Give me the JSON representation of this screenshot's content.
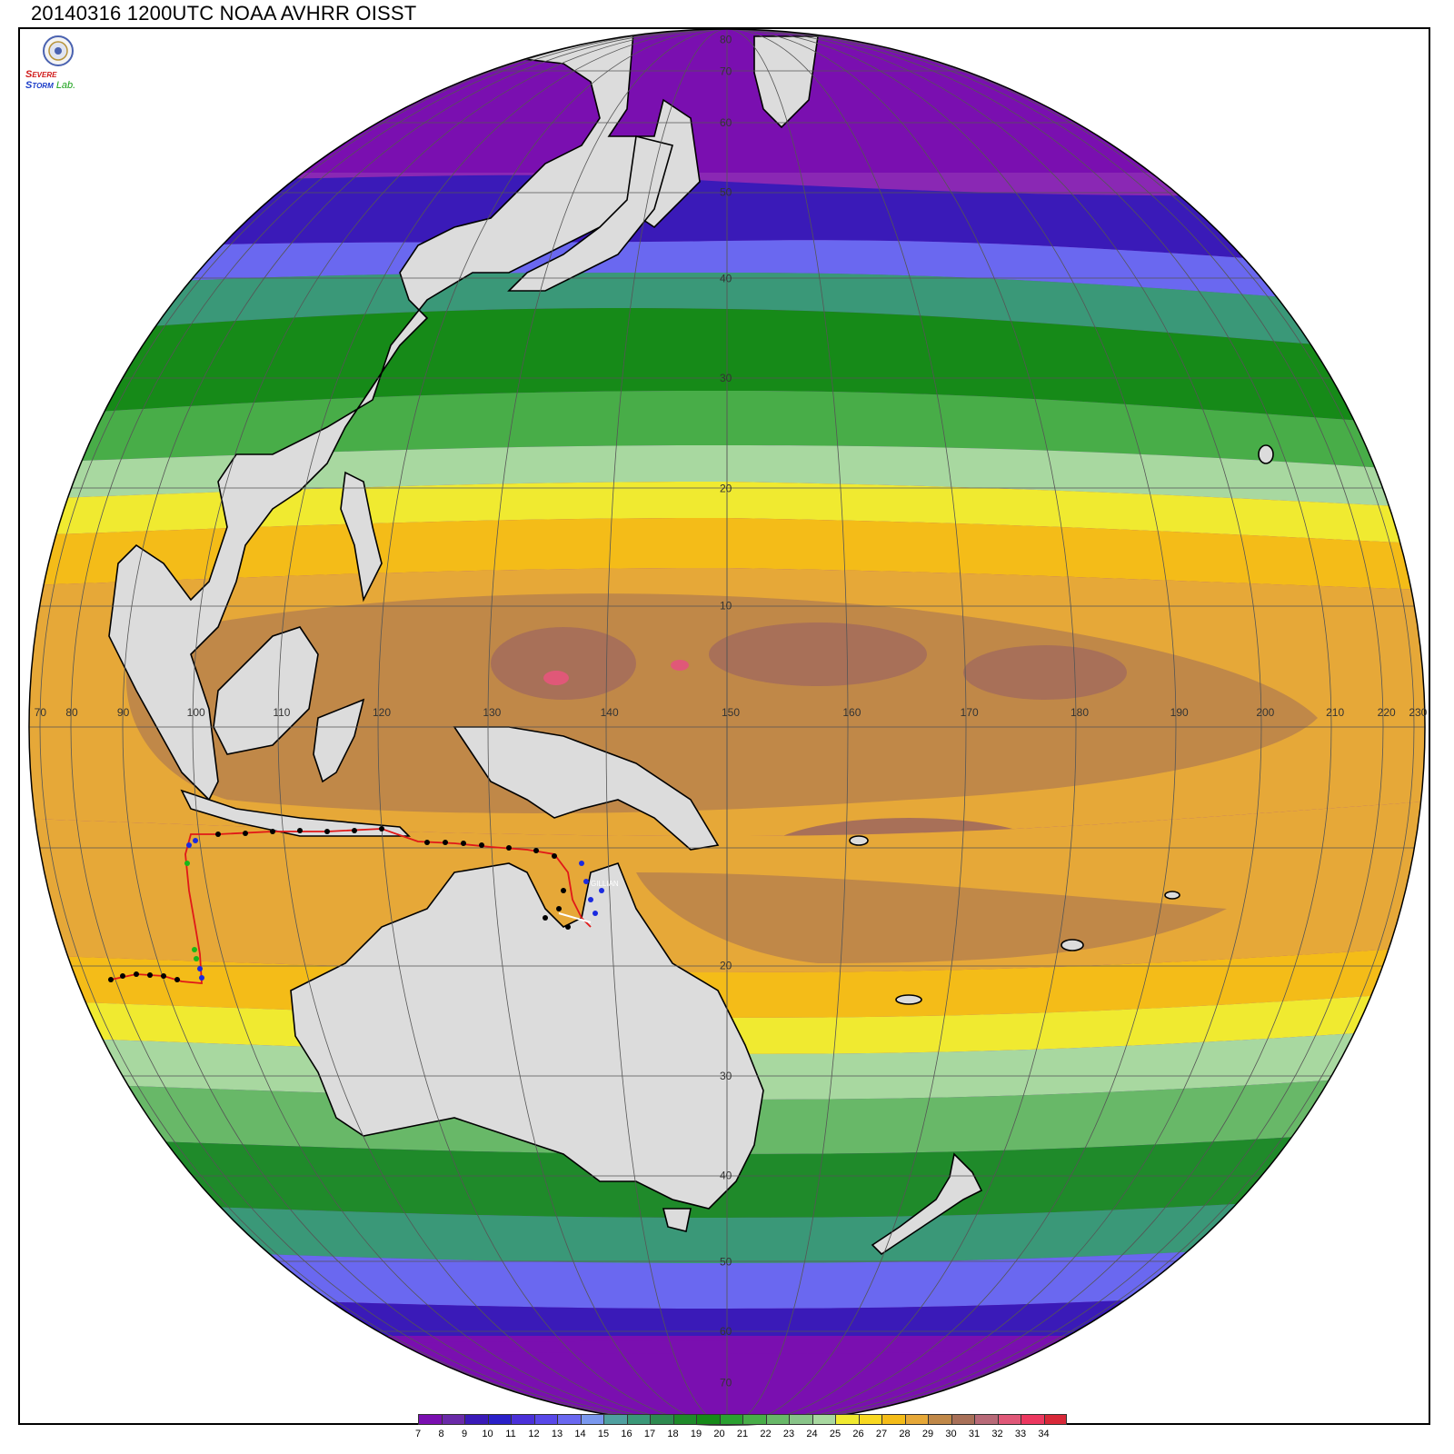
{
  "title": "20140316 1200UTC NOAA AVHRR OISST",
  "logo": {
    "text_parts": [
      "S",
      "EVERE",
      "TORM",
      "Lab."
    ]
  },
  "map": {
    "projection": "orthographic",
    "center_lon": 150,
    "center_lat": 0,
    "lon_labels": [
      "70",
      "80",
      "90",
      "100",
      "110",
      "120",
      "130",
      "140",
      "150",
      "160",
      "170",
      "180",
      "190",
      "200",
      "210",
      "220",
      "230"
    ],
    "lat_labels_north": [
      "10",
      "20",
      "30",
      "40",
      "50",
      "60",
      "70",
      "80"
    ],
    "lat_labels_south": [
      "20",
      "30",
      "40",
      "50",
      "60",
      "70"
    ],
    "storm_label": "GILLIAN",
    "colors": {
      "land": "#dcdcdc",
      "coast": "#000000",
      "grid": "#555555",
      "track_line": "#e01818",
      "track_point": "#000000",
      "track_blue": "#1a2ae0",
      "track_green": "#18b818"
    }
  },
  "colorbar": {
    "labels": [
      "7",
      "8",
      "9",
      "10",
      "11",
      "12",
      "13",
      "14",
      "15",
      "16",
      "17",
      "18",
      "19",
      "20",
      "21",
      "22",
      "23",
      "24",
      "25",
      "26",
      "27",
      "28",
      "29",
      "30",
      "31",
      "32",
      "33",
      "34"
    ],
    "colors": [
      "#7a0fb0",
      "#6a2aa8",
      "#3a1ab8",
      "#2a20c8",
      "#4a30d8",
      "#5848e8",
      "#6a68f0",
      "#7a98ef",
      "#4fa0a0",
      "#3a9878",
      "#2e8a50",
      "#1f8a2a",
      "#168a18",
      "#2aa030",
      "#48ad48",
      "#68b868",
      "#88c488",
      "#a8d8a0",
      "#f0ea30",
      "#f8d820",
      "#f4bc18",
      "#e6a838",
      "#c08848",
      "#a87058",
      "#b86a78",
      "#e05878",
      "#ec3860",
      "#d82838"
    ]
  }
}
